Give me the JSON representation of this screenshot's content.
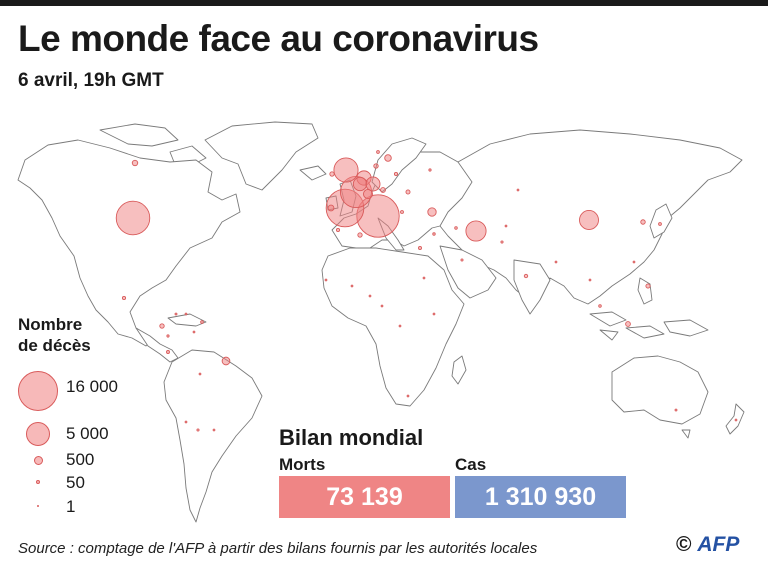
{
  "header": {
    "title": "Le monde face au coronavirus",
    "subtitle": "6 avril, 19h GMT"
  },
  "legend": {
    "title_line1": "Nombre",
    "title_line2": "de décès",
    "items": [
      {
        "label": "16 000",
        "value": 16000
      },
      {
        "label": "5 000",
        "value": 5000
      },
      {
        "label": "500",
        "value": 500
      },
      {
        "label": "50",
        "value": 50
      },
      {
        "label": "1",
        "value": 1
      }
    ]
  },
  "summary": {
    "title": "Bilan mondial",
    "deaths_label": "Morts",
    "deaths_value": "73 139",
    "cases_label": "Cas",
    "cases_value": "1 310 930"
  },
  "footer": {
    "source": "Source : comptage de l'AFP à partir des bilans fournis par les autorités locales",
    "copyright": "©",
    "brand": "AFP"
  },
  "colors": {
    "bubble_fill": "#f08080",
    "bubble_stroke": "#d95b5b",
    "deaths_box": "#ef8585",
    "cases_box": "#7b97cd",
    "map_stroke": "#7a7a7a",
    "brand_blue": "#2451a3"
  },
  "map_data": {
    "type": "proportional-symbol-map",
    "metric": "deaths",
    "bubbles": [
      {
        "place": "Italy",
        "value": 16523
      },
      {
        "place": "Spain",
        "value": 13055
      },
      {
        "place": "United States",
        "value": 10335
      },
      {
        "place": "France",
        "value": 8911
      },
      {
        "place": "United Kingdom",
        "value": 5373
      },
      {
        "place": "Iran",
        "value": 3739
      },
      {
        "place": "China",
        "value": 3331
      },
      {
        "place": "Netherlands",
        "value": 1867
      },
      {
        "place": "Belgium",
        "value": 1632
      },
      {
        "place": "Germany",
        "value": 1810
      },
      {
        "place": "Switzerland",
        "value": 765
      },
      {
        "place": "Turkey",
        "value": 649
      },
      {
        "place": "Brazil",
        "value": 553
      },
      {
        "place": "Sweden",
        "value": 401
      },
      {
        "place": "Portugal",
        "value": 311
      },
      {
        "place": "Austria",
        "value": 220
      },
      {
        "place": "Indonesia",
        "value": 209
      },
      {
        "place": "Canada",
        "value": 274
      },
      {
        "place": "Ecuador",
        "value": 180
      },
      {
        "place": "Denmark",
        "value": 179
      },
      {
        "place": "Philippines",
        "value": 163
      },
      {
        "place": "Mexico",
        "value": 94
      },
      {
        "place": "South Korea",
        "value": 186
      },
      {
        "place": "India",
        "value": 109
      },
      {
        "place": "Japan",
        "value": 73
      },
      {
        "place": "Algeria",
        "value": 173
      },
      {
        "place": "Egypt",
        "value": 85
      },
      {
        "place": "Peru",
        "value": 83
      },
      {
        "place": "Argentina",
        "value": 43
      },
      {
        "place": "Chile",
        "value": 27
      },
      {
        "place": "Colombia",
        "value": 35
      },
      {
        "place": "Malaysia",
        "value": 61
      },
      {
        "place": "Iraq",
        "value": 61
      },
      {
        "place": "Pakistan",
        "value": 45
      },
      {
        "place": "Morocco",
        "value": 90
      },
      {
        "place": "South Africa",
        "value": 12
      },
      {
        "place": "Australia",
        "value": 35
      },
      {
        "place": "Poland",
        "value": 94
      },
      {
        "place": "Romania",
        "value": 151
      },
      {
        "place": "Greece",
        "value": 79
      },
      {
        "place": "Ireland",
        "value": 174
      },
      {
        "place": "Norway",
        "value": 71
      },
      {
        "place": "Russia",
        "value": 47
      },
      {
        "place": "Israel",
        "value": 57
      },
      {
        "place": "Saudi Arabia",
        "value": 41
      },
      {
        "place": "Dominican Rep.",
        "value": 68
      },
      {
        "place": "Panama",
        "value": 46
      },
      {
        "place": "Bolivia",
        "value": 10
      },
      {
        "place": "Venezuela",
        "value": 7
      },
      {
        "place": "Thailand",
        "value": 26
      },
      {
        "place": "Nigeria",
        "value": 5
      },
      {
        "place": "Cameroon",
        "value": 7
      },
      {
        "place": "Burkina Faso",
        "value": 18
      },
      {
        "place": "Senegal",
        "value": 2
      },
      {
        "place": "Kenya",
        "value": 4
      },
      {
        "place": "Congo DR",
        "value": 18
      },
      {
        "place": "Sudan",
        "value": 2
      },
      {
        "place": "Taiwan",
        "value": 5
      },
      {
        "place": "Bangladesh",
        "value": 9
      },
      {
        "place": "Afghanistan",
        "value": 7
      },
      {
        "place": "Kazakhstan",
        "value": 3
      },
      {
        "place": "New Zealand",
        "value": 1
      },
      {
        "place": "Uruguay",
        "value": 6
      },
      {
        "place": "Cuba",
        "value": 9
      }
    ]
  }
}
